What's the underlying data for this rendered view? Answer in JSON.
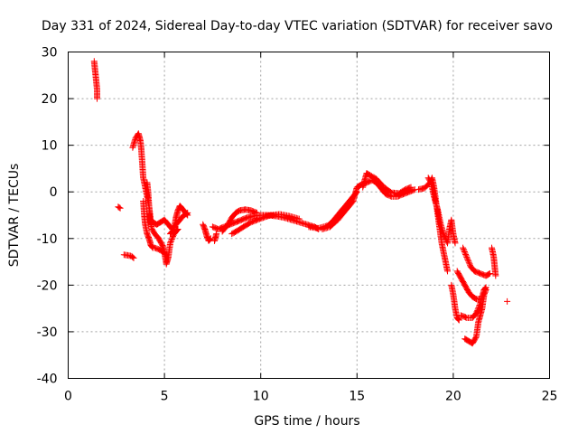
{
  "chart_data": {
    "type": "scatter",
    "title": "Day 331 of 2024, Sidereal Day-to-day VTEC variation (SDTVAR) for receiver savo",
    "xlabel": "GPS time / hours",
    "ylabel": "SDTVAR / TECUs",
    "xlim": [
      0,
      25
    ],
    "ylim": [
      -40,
      30
    ],
    "xticks": [
      0,
      5,
      10,
      15,
      20,
      25
    ],
    "yticks": [
      -40,
      -30,
      -20,
      -10,
      0,
      10,
      20,
      30
    ],
    "grid": true,
    "marker": "plus",
    "color": "#ff0000",
    "series": [
      {
        "name": "SDTVAR",
        "segments": [
          [
            [
              1.35,
              28
            ],
            [
              1.4,
              26
            ],
            [
              1.45,
              24
            ],
            [
              1.5,
              22
            ],
            [
              1.5,
              20
            ]
          ],
          [
            [
              2.6,
              -3.2
            ],
            [
              2.7,
              -3.5
            ]
          ],
          [
            [
              2.9,
              -13.5
            ],
            [
              3.1,
              -13.6
            ],
            [
              3.3,
              -13.8
            ],
            [
              3.4,
              -14.2
            ]
          ],
          [
            [
              3.35,
              9.5
            ],
            [
              3.5,
              11.5
            ],
            [
              3.65,
              12.5
            ],
            [
              3.75,
              11
            ],
            [
              3.8,
              9
            ],
            [
              3.85,
              6
            ],
            [
              3.9,
              3
            ],
            [
              4.0,
              1
            ],
            [
              4.1,
              -1
            ],
            [
              4.2,
              -3
            ],
            [
              4.25,
              -5
            ],
            [
              4.3,
              -7
            ]
          ],
          [
            [
              3.9,
              -2
            ],
            [
              3.95,
              -5
            ],
            [
              4.0,
              -7
            ],
            [
              4.1,
              -9
            ],
            [
              4.2,
              -10
            ],
            [
              4.3,
              -11.5
            ],
            [
              4.4,
              -12
            ]
          ],
          [
            [
              4.1,
              2
            ],
            [
              4.15,
              0
            ],
            [
              4.2,
              -3
            ],
            [
              4.25,
              -6
            ],
            [
              4.35,
              -8
            ],
            [
              4.5,
              -9
            ],
            [
              4.7,
              -10
            ],
            [
              4.9,
              -11.5
            ],
            [
              5.0,
              -13
            ],
            [
              5.1,
              -15.5
            ],
            [
              5.2,
              -14
            ],
            [
              5.3,
              -11
            ],
            [
              5.5,
              -9
            ],
            [
              5.7,
              -8
            ]
          ],
          [
            [
              4.4,
              -6.5
            ],
            [
              4.6,
              -7
            ],
            [
              4.8,
              -6.5
            ],
            [
              5.0,
              -6
            ],
            [
              5.2,
              -7
            ],
            [
              5.4,
              -8
            ],
            [
              5.6,
              -7
            ],
            [
              5.8,
              -6
            ],
            [
              6.0,
              -5
            ],
            [
              6.2,
              -4.5
            ]
          ],
          [
            [
              5.3,
              -9
            ],
            [
              5.5,
              -8
            ],
            [
              5.6,
              -5.5
            ],
            [
              5.7,
              -4
            ],
            [
              5.8,
              -3
            ],
            [
              5.9,
              -3.5
            ],
            [
              6.0,
              -4
            ],
            [
              6.2,
              -5
            ]
          ],
          [
            [
              4.5,
              -12
            ],
            [
              4.8,
              -12.5
            ],
            [
              5.1,
              -13.5
            ]
          ],
          [
            [
              7.0,
              -7
            ],
            [
              7.1,
              -8
            ],
            [
              7.2,
              -9.5
            ],
            [
              7.3,
              -10.5
            ],
            [
              7.4,
              -10
            ]
          ],
          [
            [
              7.6,
              -10.5
            ],
            [
              7.7,
              -9
            ]
          ],
          [
            [
              7.5,
              -7.5
            ],
            [
              7.8,
              -8
            ],
            [
              8.1,
              -7.5
            ],
            [
              8.4,
              -7
            ],
            [
              8.7,
              -6.5
            ],
            [
              9.0,
              -6
            ],
            [
              9.3,
              -5.5
            ],
            [
              9.6,
              -5.2
            ],
            [
              10.0,
              -5
            ],
            [
              10.4,
              -5
            ],
            [
              10.8,
              -5.2
            ],
            [
              11.2,
              -5.5
            ],
            [
              11.6,
              -6
            ],
            [
              12.0,
              -6.5
            ],
            [
              12.4,
              -7
            ],
            [
              12.8,
              -7.5
            ],
            [
              13.0,
              -8
            ]
          ],
          [
            [
              8.0,
              -8.5
            ],
            [
              8.3,
              -7
            ],
            [
              8.5,
              -5.5
            ],
            [
              8.7,
              -4.5
            ],
            [
              8.9,
              -4
            ],
            [
              9.2,
              -3.8
            ],
            [
              9.5,
              -4
            ],
            [
              9.8,
              -4.5
            ]
          ],
          [
            [
              8.5,
              -9
            ],
            [
              8.8,
              -8.3
            ],
            [
              9.1,
              -7.5
            ],
            [
              9.5,
              -6.5
            ],
            [
              10.0,
              -5.7
            ],
            [
              10.5,
              -5
            ],
            [
              11.0,
              -4.8
            ],
            [
              11.5,
              -5.2
            ],
            [
              12.0,
              -5.8
            ]
          ],
          [
            [
              12.5,
              -7.5
            ],
            [
              13.0,
              -7.8
            ],
            [
              13.5,
              -7.2
            ],
            [
              13.8,
              -6
            ],
            [
              14.0,
              -5
            ],
            [
              14.2,
              -4
            ],
            [
              14.4,
              -3
            ],
            [
              14.6,
              -2
            ],
            [
              14.8,
              -1
            ],
            [
              15.0,
              0
            ]
          ],
          [
            [
              13.2,
              -8
            ],
            [
              13.6,
              -7.5
            ],
            [
              14.0,
              -6
            ],
            [
              14.4,
              -4
            ],
            [
              14.8,
              -2
            ],
            [
              15.0,
              1
            ],
            [
              15.2,
              1.5
            ],
            [
              15.5,
              2
            ],
            [
              15.8,
              2.5
            ],
            [
              16.0,
              2
            ],
            [
              16.3,
              0.5
            ],
            [
              16.5,
              -0.5
            ],
            [
              16.8,
              -1
            ],
            [
              17.1,
              -1
            ],
            [
              17.4,
              -0.5
            ],
            [
              17.7,
              0
            ],
            [
              18.0,
              0.5
            ]
          ],
          [
            [
              15.3,
              1
            ],
            [
              15.5,
              4
            ],
            [
              15.7,
              3.5
            ],
            [
              16.0,
              2.8
            ],
            [
              16.4,
              1
            ],
            [
              16.8,
              -0.2
            ],
            [
              17.2,
              -0.3
            ],
            [
              17.5,
              0.5
            ],
            [
              17.8,
              1
            ]
          ],
          [
            [
              18.2,
              0.5
            ],
            [
              18.5,
              0.8
            ],
            [
              18.8,
              2
            ],
            [
              18.9,
              3
            ],
            [
              19.0,
              1
            ],
            [
              19.1,
              -2
            ],
            [
              19.2,
              -5
            ],
            [
              19.3,
              -8
            ],
            [
              19.4,
              -11
            ],
            [
              19.5,
              -13
            ],
            [
              19.6,
              -15
            ],
            [
              19.7,
              -17
            ]
          ],
          [
            [
              18.7,
              3
            ],
            [
              18.85,
              2
            ],
            [
              19.0,
              -1
            ],
            [
              19.2,
              -4
            ],
            [
              19.35,
              -7
            ],
            [
              19.5,
              -9
            ],
            [
              19.7,
              -11
            ],
            [
              19.8,
              -8
            ],
            [
              19.9,
              -6
            ],
            [
              20.0,
              -9
            ],
            [
              20.1,
              -11
            ]
          ],
          [
            [
              19.9,
              -20
            ],
            [
              20.0,
              -22
            ],
            [
              20.1,
              -25
            ],
            [
              20.2,
              -27
            ],
            [
              20.3,
              -27.5
            ]
          ],
          [
            [
              20.4,
              -26.5
            ],
            [
              20.7,
              -27
            ],
            [
              21.0,
              -27
            ],
            [
              21.2,
              -26
            ],
            [
              21.4,
              -24
            ],
            [
              21.6,
              -21
            ],
            [
              21.7,
              -20.5
            ]
          ],
          [
            [
              20.2,
              -17
            ],
            [
              20.4,
              -18.5
            ],
            [
              20.6,
              -20
            ],
            [
              20.8,
              -21.5
            ],
            [
              21.0,
              -22.5
            ],
            [
              21.2,
              -23
            ],
            [
              21.4,
              -23
            ]
          ],
          [
            [
              20.5,
              -12
            ],
            [
              20.7,
              -14
            ],
            [
              20.9,
              -16
            ],
            [
              21.1,
              -17
            ],
            [
              21.4,
              -17.5
            ],
            [
              21.7,
              -18
            ],
            [
              21.9,
              -17.5
            ]
          ],
          [
            [
              20.6,
              -31.5
            ],
            [
              20.8,
              -32
            ],
            [
              21.0,
              -32.5
            ],
            [
              21.2,
              -31
            ],
            [
              21.3,
              -28
            ],
            [
              21.5,
              -25
            ],
            [
              21.6,
              -22
            ],
            [
              21.7,
              -21
            ]
          ],
          [
            [
              22.0,
              -12
            ],
            [
              22.1,
              -14
            ],
            [
              22.15,
              -16
            ],
            [
              22.2,
              -18
            ]
          ],
          [
            [
              22.8,
              -23.5
            ]
          ]
        ]
      }
    ]
  }
}
